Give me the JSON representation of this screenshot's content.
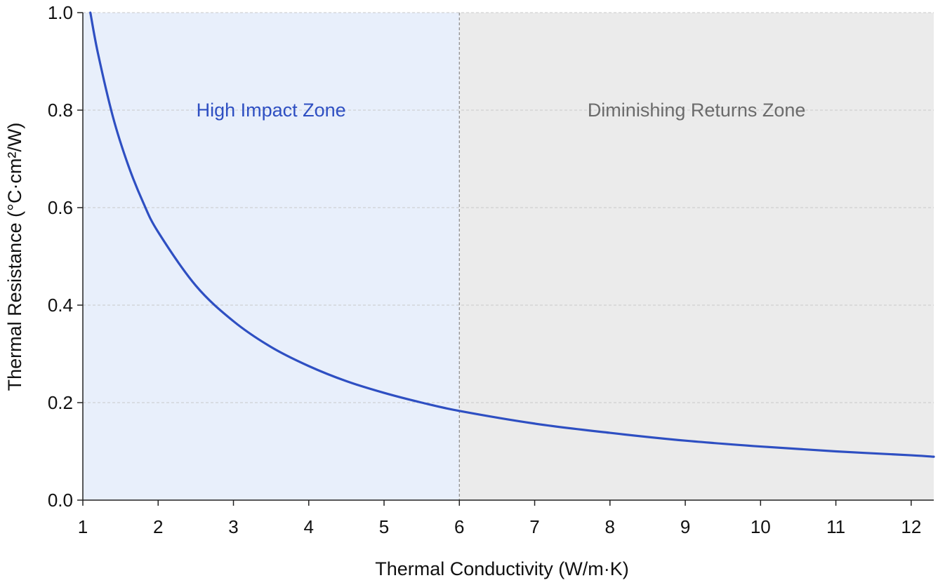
{
  "chart_data": {
    "type": "line",
    "title": "",
    "xlabel": "Thermal Conductivity (W/m·K)",
    "ylabel": "Thermal Resistance (°C·cm²/W)",
    "xlim": [
      1,
      12.3
    ],
    "ylim": [
      0,
      1.0
    ],
    "x_ticks": [
      1,
      2,
      3,
      4,
      5,
      6,
      7,
      8,
      9,
      10,
      11,
      12
    ],
    "y_ticks": [
      0.0,
      0.2,
      0.4,
      0.6,
      0.8,
      1.0
    ],
    "x_tick_labels": [
      "1",
      "2",
      "3",
      "4",
      "5",
      "6",
      "7",
      "8",
      "9",
      "10",
      "11",
      "12"
    ],
    "y_tick_labels": [
      "0.0",
      "0.2",
      "0.4",
      "0.6",
      "0.8",
      "1.0"
    ],
    "grid": "horizontal dashed",
    "series": [
      {
        "color": "#2e4fc2",
        "x": [
          1.1,
          1.2,
          1.4,
          1.6,
          1.8,
          2.0,
          2.5,
          3.0,
          3.5,
          4.0,
          4.5,
          5.0,
          5.5,
          6.0,
          7.0,
          8.0,
          9.0,
          10.0,
          11.0,
          12.0,
          12.3
        ],
        "y": [
          1.0,
          0.917,
          0.786,
          0.688,
          0.611,
          0.55,
          0.44,
          0.367,
          0.314,
          0.275,
          0.244,
          0.22,
          0.2,
          0.183,
          0.157,
          0.138,
          0.122,
          0.11,
          0.1,
          0.092,
          0.089
        ]
      }
    ],
    "zones": [
      {
        "label": "High Impact Zone",
        "x_range": [
          1,
          6
        ],
        "label_y": 0.8,
        "fill": "#e8effb",
        "text_color": "#2e4fc2"
      },
      {
        "label": "Diminishing Returns Zone",
        "x_range": [
          6,
          12.3
        ],
        "label_y": 0.8,
        "fill": "#ebebeb",
        "text_color": "#6b6b6b"
      }
    ],
    "divider_x": 6
  }
}
